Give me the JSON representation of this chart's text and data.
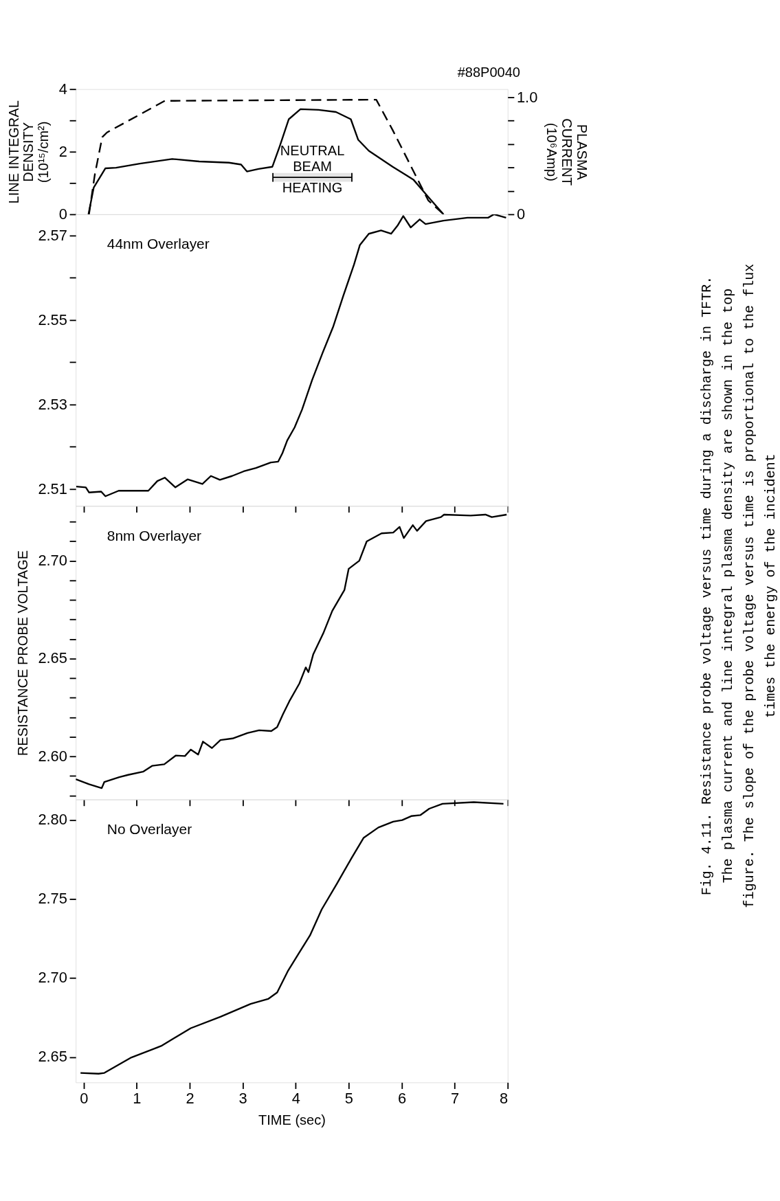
{
  "chart_data": [
    {
      "type": "line",
      "ylabel": "LINE INTEGRAL DENSITY (10¹⁵/cm²)",
      "y2label": "PLASMA CURRENT (10⁶Amp)",
      "xlim": [
        -0.15,
        8
      ],
      "xticks": [
        {
          "value": 0,
          "label": null
        },
        {
          "value": 1,
          "label": null
        },
        {
          "value": 2,
          "label": null
        },
        {
          "value": 3,
          "label": null
        },
        {
          "value": 4,
          "label": null
        },
        {
          "value": 5,
          "label": null
        },
        {
          "value": 6,
          "label": null
        },
        {
          "value": 7,
          "label": null
        },
        {
          "value": 8,
          "label": null
        }
      ],
      "ylim": [
        0,
        4
      ],
      "yticks": [
        0,
        {
          "value": 1,
          "label": null
        },
        2,
        {
          "value": 3,
          "label": null
        },
        4
      ],
      "y2lim": [
        0,
        1.07
      ],
      "y2ticks": [
        0,
        {
          "value": 0.2,
          "label": null
        },
        {
          "value": 0.4,
          "label": null
        },
        {
          "value": 0.6,
          "label": null
        },
        {
          "value": 0.8,
          "label": null
        },
        {
          "value": 1.0,
          "label": "1.0"
        }
      ],
      "tick_labels": "y",
      "grid": false,
      "series": [
        {
          "color": "#000000",
          "line_style": "solid",
          "x": [
            0.09,
            0.19,
            0.41,
            0.61,
            1.06,
            1.67,
            2.18,
            2.74,
            2.97,
            3.08,
            3.3,
            3.56,
            3.7,
            3.87,
            4.09,
            4.43,
            4.76,
            5.04,
            5.18,
            5.38,
            5.83,
            6.22,
            6.5,
            6.79
          ],
          "values": [
            0,
            0.86,
            1.47,
            1.49,
            1.62,
            1.77,
            1.69,
            1.65,
            1.59,
            1.37,
            1.45,
            1.52,
            2.18,
            3.04,
            3.36,
            3.34,
            3.27,
            3.04,
            2.38,
            2.03,
            1.52,
            1.11,
            0.56,
            0
          ]
        },
        {
          "color": "#000000",
          "line_style": "dashed",
          "axis": "y2",
          "x": [
            0.1,
            0.21,
            0.35,
            0.44,
            1.53,
            5.52,
            5.83,
            6.5,
            6.79
          ],
          "values": [
            0,
            0.34,
            0.66,
            0.7,
            0.97,
            0.98,
            0.72,
            0.12,
            0
          ]
        }
      ],
      "bands": [
        {
          "axis": "x",
          "from": 3.57,
          "to": 5.06,
          "label": "NEUTRAL BEAM HEATING"
        }
      ],
      "annotations": [
        "#88P0040"
      ]
    },
    {
      "type": "line",
      "title": "44nm Overlayer",
      "xlim": [
        -0.15,
        8
      ],
      "xticks": [
        {
          "value": 0,
          "label": null
        },
        {
          "value": 1,
          "label": null
        },
        {
          "value": 2,
          "label": null
        },
        {
          "value": 3,
          "label": null
        },
        {
          "value": 4,
          "label": null
        },
        {
          "value": 5,
          "label": null
        },
        {
          "value": 6,
          "label": null
        },
        {
          "value": 7,
          "label": null
        },
        {
          "value": 8,
          "label": null
        }
      ],
      "ylim": [
        2.506,
        2.575
      ],
      "yticks": [
        2.51,
        {
          "value": 2.52,
          "label": null
        },
        2.53,
        {
          "value": 2.54,
          "label": null
        },
        2.55,
        {
          "value": 2.56,
          "label": null
        },
        2.57
      ],
      "tick_labels": "y",
      "grid": false,
      "series": [
        {
          "color": "#000000",
          "line_style": "solid",
          "x": [
            -0.14,
            0.04,
            0.1,
            0.33,
            0.41,
            0.66,
            1.22,
            1.39,
            1.53,
            1.73,
            1.96,
            2.24,
            2.4,
            2.57,
            2.8,
            3.02,
            3.25,
            3.53,
            3.67,
            3.75,
            3.84,
            3.98,
            4.12,
            4.31,
            4.51,
            4.71,
            4.9,
            5.1,
            5.21,
            5.38,
            5.61,
            5.8,
            5.92,
            6.03,
            6.17,
            6.34,
            6.45,
            6.79,
            7.24,
            7.63,
            7.74,
            7.97
          ],
          "values": [
            2.5106,
            2.5104,
            2.5092,
            2.5094,
            2.5083,
            2.5096,
            2.5096,
            2.5119,
            2.5127,
            2.5104,
            2.5123,
            2.5112,
            2.5131,
            2.5122,
            2.5131,
            2.5142,
            2.515,
            2.5163,
            2.5165,
            2.5185,
            2.5215,
            2.5246,
            2.5288,
            2.5358,
            2.5423,
            2.5485,
            2.5558,
            2.5631,
            2.5677,
            2.5704,
            2.5712,
            2.5704,
            2.5723,
            2.5746,
            2.5719,
            2.5738,
            2.5727,
            2.5735,
            2.5742,
            2.5742,
            2.575,
            2.5742
          ]
        }
      ]
    },
    {
      "type": "line",
      "title": "8nm Overlayer",
      "ylabel": "RESISTANCE PROBE VOLTAGE",
      "xlim": [
        -0.15,
        8
      ],
      "xticks": [
        {
          "value": 0,
          "label": null
        },
        {
          "value": 1,
          "label": null
        },
        {
          "value": 2,
          "label": null
        },
        {
          "value": 3,
          "label": null
        },
        {
          "value": 4,
          "label": null
        },
        {
          "value": 5,
          "label": null
        },
        {
          "value": 6,
          "label": null
        },
        {
          "value": 7,
          "label": null
        },
        {
          "value": 8,
          "label": null
        }
      ],
      "ylim": [
        2.578,
        2.728
      ],
      "yticks": [
        {
          "value": 2.58,
          "label": null
        },
        {
          "value": 2.59,
          "label": null
        },
        {
          "value": 2.6,
          "label": "2.60"
        },
        {
          "value": 2.61,
          "label": null
        },
        {
          "value": 2.62,
          "label": null
        },
        {
          "value": 2.63,
          "label": null
        },
        {
          "value": 2.64,
          "label": null
        },
        2.65,
        {
          "value": 2.66,
          "label": null
        },
        {
          "value": 2.67,
          "label": null
        },
        {
          "value": 2.68,
          "label": null
        },
        {
          "value": 2.69,
          "label": null
        },
        {
          "value": 2.7,
          "label": "2.70"
        },
        {
          "value": 2.71,
          "label": null
        },
        {
          "value": 2.72,
          "label": null
        }
      ],
      "tick_labels": "y",
      "grid": false,
      "series": [
        {
          "color": "#000000",
          "line_style": "solid",
          "x": [
            -0.15,
            0.1,
            0.34,
            0.39,
            0.67,
            0.84,
            1.12,
            1.29,
            1.52,
            1.74,
            1.91,
            2.02,
            2.16,
            2.25,
            2.42,
            2.58,
            2.81,
            3.09,
            3.31,
            3.54,
            3.65,
            3.76,
            3.88,
            4.07,
            4.19,
            4.24,
            4.33,
            4.52,
            4.69,
            4.92,
            5.0,
            5.2,
            5.34,
            5.62,
            5.84,
            5.96,
            6.04,
            6.21,
            6.29,
            6.46,
            6.74,
            6.8,
            7.3,
            7.58,
            7.7,
            7.98
          ],
          "values": [
            2.5884,
            2.5858,
            2.5838,
            2.587,
            2.5894,
            2.5906,
            2.5922,
            2.5952,
            2.596,
            2.6005,
            2.6002,
            2.6035,
            2.601,
            2.6076,
            2.6043,
            2.6084,
            2.6092,
            2.612,
            2.6134,
            2.613,
            2.615,
            2.6216,
            2.6282,
            2.6373,
            2.6455,
            2.6431,
            2.6521,
            2.6629,
            2.6744,
            2.6851,
            2.6959,
            2.7,
            2.7099,
            2.714,
            2.7144,
            2.7173,
            2.7116,
            2.7182,
            2.7153,
            2.7203,
            2.7223,
            2.7236,
            2.7231,
            2.7236,
            2.7223,
            2.7236
          ]
        }
      ]
    },
    {
      "type": "line",
      "title": "No Overlayer",
      "xlabel": "TIME (sec)",
      "xlim": [
        -0.15,
        8
      ],
      "xticks": [
        0,
        1,
        2,
        3,
        4,
        5,
        6,
        7,
        8
      ],
      "ylim": [
        2.634,
        2.813
      ],
      "yticks": [
        2.65,
        {
          "value": 2.7,
          "label": "2.70"
        },
        2.75,
        {
          "value": 2.8,
          "label": "2.80"
        }
      ],
      "grid": false,
      "series": [
        {
          "color": "#000000",
          "line_style": "solid",
          "x": [
            -0.06,
            0.28,
            0.39,
            0.9,
            1.46,
            2.02,
            2.58,
            3.15,
            3.48,
            3.65,
            3.85,
            4.04,
            4.27,
            4.49,
            4.78,
            5.06,
            5.28,
            5.56,
            5.84,
            6.01,
            6.18,
            6.35,
            6.52,
            6.77,
            7.36,
            7.92
          ],
          "values": [
            2.64,
            2.6395,
            2.64,
            2.6498,
            2.657,
            2.6683,
            2.6755,
            2.6837,
            2.6868,
            2.6909,
            2.7043,
            2.7146,
            2.727,
            2.7434,
            2.7599,
            2.7763,
            2.7887,
            2.7953,
            2.799,
            2.8,
            2.8025,
            2.8031,
            2.8072,
            2.8103,
            2.8113,
            2.8103
          ]
        }
      ],
      "annotations": [
        "Fig. 4.11. Resistance probe voltage versus time during a discharge in TFTR. The plasma current and line integral plasma density are shown in the top figure. The slope of the probe voltage versus time is proportional to the flux times the energy of the incident"
      ]
    }
  ]
}
